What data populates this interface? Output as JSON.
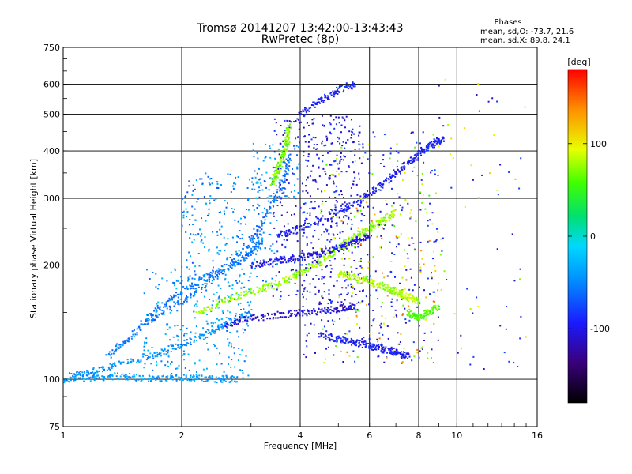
{
  "chart_data": {
    "type": "scatter",
    "title": "Tromsø 20141207 13:42:00-13:43:43",
    "subtitle": "RwPretec (8p)",
    "xlabel": "Frequency [MHz]",
    "ylabel": "Stationary phase Virtual Height [km]",
    "x_scale": "log",
    "y_scale": "log",
    "xlim": [
      1,
      16
    ],
    "ylim": [
      75,
      750
    ],
    "x_ticks": [
      {
        "value": 1,
        "label": "1"
      },
      {
        "value": 2,
        "label": "2"
      },
      {
        "value": 4,
        "label": "4"
      },
      {
        "value": 6,
        "label": "6"
      },
      {
        "value": 8,
        "label": "8"
      },
      {
        "value": 10,
        "label": "10"
      },
      {
        "value": 16,
        "label": "16"
      }
    ],
    "y_ticks": [
      {
        "value": 75,
        "label": "75"
      },
      {
        "value": 100,
        "label": "100"
      },
      {
        "value": 200,
        "label": "200"
      },
      {
        "value": 300,
        "label": "300"
      },
      {
        "value": 400,
        "label": "400"
      },
      {
        "value": 500,
        "label": "500"
      },
      {
        "value": 600,
        "label": "600"
      },
      {
        "value": 750,
        "label": "750"
      }
    ],
    "grid": true,
    "phases_header": "Phases",
    "phases_O": "mean, sd,O: -73.7, 21.6",
    "phases_X": "mean, sd,X:  89.8, 24.1",
    "colorbar": {
      "label": "[deg]",
      "range": [
        -180,
        180
      ],
      "ticks": [
        {
          "value": 100,
          "label": "100"
        },
        {
          "value": 0,
          "label": "0"
        },
        {
          "value": -100,
          "label": "-100"
        }
      ],
      "colormap": "rainbow"
    },
    "series": [
      {
        "traces": [
          {
            "points": [
              [
                1.0,
                100
              ],
              [
                1.2,
                101
              ],
              [
                1.4,
                102
              ],
              [
                1.7,
                100
              ],
              [
                2.0,
                101
              ],
              [
                2.4,
                100
              ],
              [
                2.8,
                100
              ]
            ],
            "phase": -40
          },
          {
            "points": [
              [
                1.05,
                102
              ],
              [
                1.2,
                105
              ],
              [
                1.4,
                110
              ],
              [
                1.7,
                116
              ],
              [
                2.0,
                123
              ],
              [
                2.3,
                131
              ],
              [
                2.6,
                141
              ],
              [
                3.0,
                150
              ]
            ],
            "phase": -45
          },
          {
            "points": [
              [
                1.3,
                115
              ],
              [
                1.5,
                130
              ],
              [
                1.7,
                150
              ],
              [
                2.0,
                170
              ],
              [
                2.3,
                185
              ],
              [
                2.7,
                200
              ],
              [
                3.0,
                215
              ],
              [
                3.2,
                230
              ]
            ],
            "phase": -55
          },
          {
            "points": [
              [
                1.6,
                140
              ],
              [
                2.0,
                160
              ],
              [
                2.5,
                190
              ],
              [
                3.0,
                230
              ],
              [
                3.3,
                270
              ],
              [
                3.6,
                330
              ],
              [
                3.8,
                390
              ]
            ],
            "phase": -60
          },
          {
            "points": [
              [
                2.2,
                150
              ],
              [
                2.6,
                162
              ],
              [
                3.0,
                170
              ],
              [
                3.5,
                178
              ],
              [
                4.0,
                190
              ],
              [
                4.5,
                205
              ],
              [
                5.0,
                222
              ],
              [
                5.5,
                238
              ],
              [
                6.0,
                250
              ],
              [
                6.5,
                262
              ],
              [
                7.0,
                275
              ]
            ],
            "phase": 75
          },
          {
            "points": [
              [
                3.4,
                330
              ],
              [
                3.5,
                350
              ],
              [
                3.6,
                380
              ],
              [
                3.7,
                420
              ],
              [
                3.75,
                470
              ]
            ],
            "phase": 70
          },
          {
            "points": [
              [
                3.5,
                240
              ],
              [
                4.0,
                250
              ],
              [
                4.8,
                270
              ],
              [
                5.5,
                290
              ],
              [
                6.3,
                320
              ],
              [
                7.0,
                350
              ],
              [
                7.6,
                375
              ],
              [
                8.2,
                400
              ],
              [
                8.8,
                420
              ],
              [
                9.2,
                430
              ]
            ],
            "phase": -95
          },
          {
            "points": [
              [
                3.0,
                200
              ],
              [
                3.5,
                205
              ],
              [
                4.0,
                210
              ],
              [
                4.5,
                215
              ],
              [
                5.0,
                222
              ],
              [
                5.5,
                230
              ],
              [
                6.0,
                240
              ]
            ],
            "phase": -100
          },
          {
            "points": [
              [
                2.6,
                140
              ],
              [
                3.0,
                145
              ],
              [
                3.6,
                148
              ],
              [
                4.2,
                150
              ],
              [
                5.0,
                153
              ],
              [
                5.5,
                155
              ]
            ],
            "phase": -110
          },
          {
            "points": [
              [
                4.5,
                130
              ],
              [
                5.0,
                128
              ],
              [
                5.5,
                125
              ],
              [
                6.0,
                123
              ],
              [
                6.5,
                120
              ],
              [
                7.0,
                118
              ],
              [
                7.5,
                115
              ]
            ],
            "phase": -95
          },
          {
            "points": [
              [
                5.0,
                190
              ],
              [
                5.5,
                185
              ],
              [
                6.0,
                180
              ],
              [
                6.5,
                176
              ],
              [
                7.0,
                170
              ],
              [
                7.5,
                165
              ],
              [
                8.0,
                160
              ]
            ],
            "phase": 80
          },
          {
            "points": [
              [
                4.0,
                500
              ],
              [
                4.5,
                540
              ],
              [
                5.0,
                580
              ],
              [
                5.5,
                600
              ]
            ],
            "phase": -90
          },
          {
            "points": [
              [
                7.5,
                150
              ],
              [
                8.0,
                145
              ],
              [
                8.5,
                150
              ],
              [
                9.0,
                155
              ]
            ],
            "phase": 60
          }
        ]
      }
    ],
    "scatter_clouds": [
      {
        "x": [
          1.6,
          3.0
        ],
        "y": [
          100,
          200
        ],
        "phase": -40,
        "count": 260
      },
      {
        "x": [
          2.0,
          3.5
        ],
        "y": [
          180,
          350
        ],
        "phase": -50,
        "count": 260
      },
      {
        "x": [
          3.0,
          4.0
        ],
        "y": [
          300,
          420
        ],
        "phase": -40,
        "count": 80
      },
      {
        "x": [
          3.4,
          5.8
        ],
        "y": [
          150,
          500
        ],
        "phase": -100,
        "count": 420
      },
      {
        "x": [
          4.0,
          9.0
        ],
        "y": [
          110,
          450
        ],
        "phase": -95,
        "count": 300
      },
      {
        "x": [
          4.5,
          9.0
        ],
        "y": [
          110,
          450
        ],
        "phase": 80,
        "count": 140
      },
      {
        "x": [
          5.0,
          9.0
        ],
        "y": [
          110,
          300
        ],
        "phase": 130,
        "count": 70
      },
      {
        "x": [
          9.0,
          15.0
        ],
        "y": [
          100,
          650
        ],
        "phase": -95,
        "count": 40
      },
      {
        "x": [
          9.0,
          15.0
        ],
        "y": [
          100,
          650
        ],
        "phase": 90,
        "count": 25
      }
    ]
  }
}
